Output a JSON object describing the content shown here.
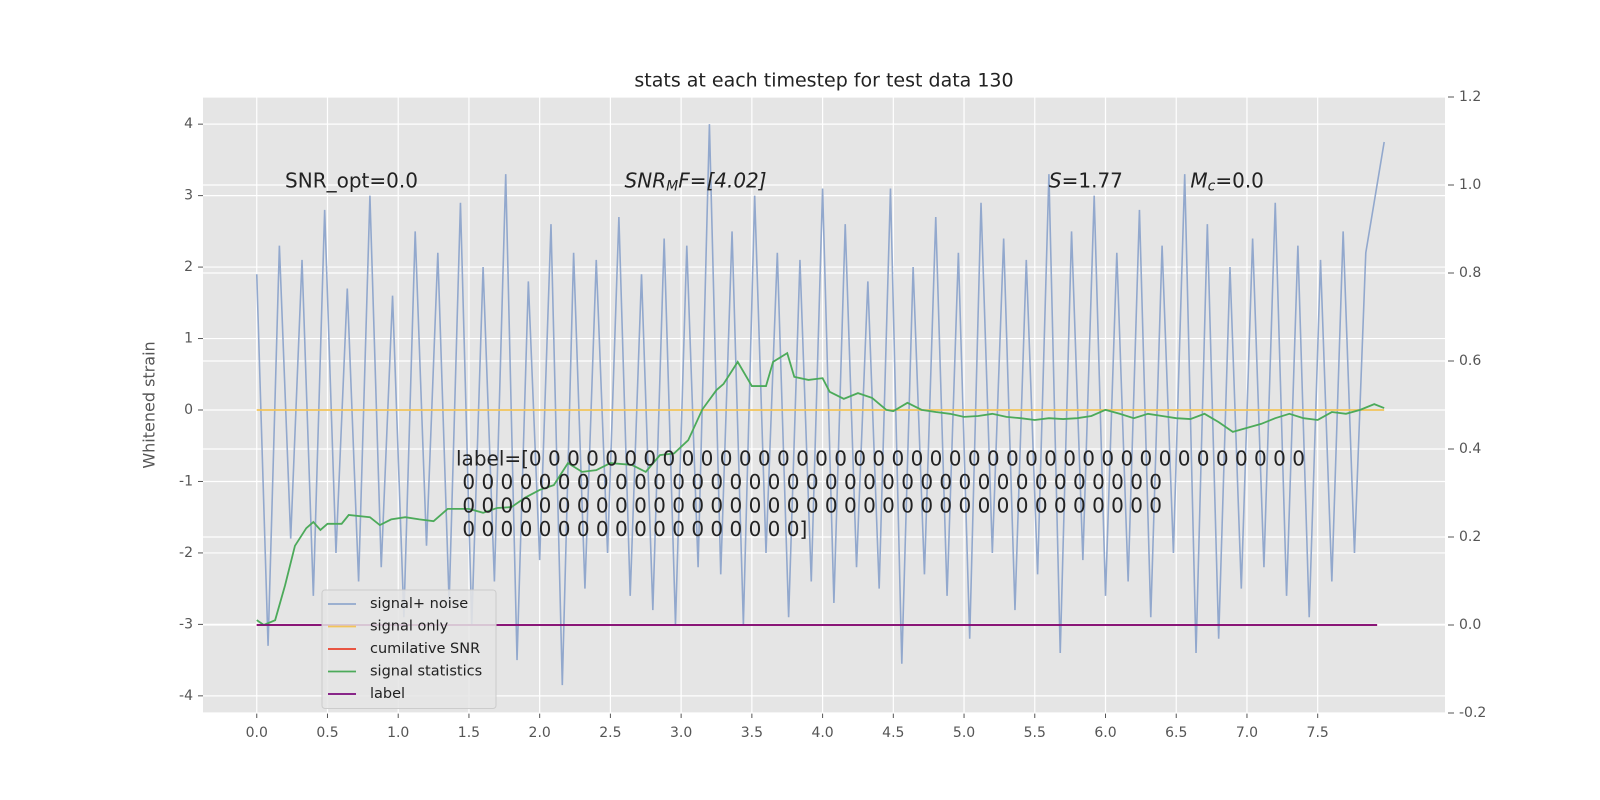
{
  "chart_data": {
    "type": "line",
    "title": "stats at each timestep for test data 130",
    "ylabel": "Whitened strain",
    "annotations": [
      {
        "parts": [
          "SNR_opt=0.0"
        ]
      },
      {
        "parts": [
          "SNR",
          "M",
          "F=[4.02]"
        ]
      },
      {
        "parts": [
          "S",
          "=1.77"
        ]
      },
      {
        "parts": [
          "M",
          "c",
          "=0.0"
        ]
      }
    ],
    "label_text": [
      "label=[0 0 0 0 0 0 0 0 0 0 0 0 0 0 0 0 0 0 0 0 0 0 0 0 0 0 0 0 0 0 0 0 0 0 0 0 0 0 0 0 0",
      " 0 0 0 0 0 0 0 0 0 0 0 0 0 0 0 0 0 0 0 0 0 0 0 0 0 0 0 0 0 0 0 0 0 0 0 0 0",
      " 0 0 0 0 0 0 0 0 0 0 0 0 0 0 0 0 0 0 0 0 0 0 0 0 0 0 0 0 0 0 0 0 0 0 0 0 0",
      " 0 0 0 0 0 0 0 0 0 0 0 0 0 0 0 0 0 0]"
    ],
    "xlim": [
      -0.38,
      8.4
    ],
    "xticks": [
      {
        "value": 0,
        "label": "0.0"
      },
      0.5,
      {
        "value": 1,
        "label": "1.0"
      },
      1.5,
      {
        "value": 2,
        "label": "2.0"
      },
      2.5,
      {
        "value": 3,
        "label": "3.0"
      },
      3.5,
      {
        "value": 4,
        "label": "4.0"
      },
      4.5,
      {
        "value": 5,
        "label": "5.0"
      },
      5.5,
      {
        "value": 6,
        "label": "6.0"
      },
      6.5,
      {
        "value": 7,
        "label": "7.0"
      },
      7.5
    ],
    "ylim": [
      -4.24,
      4.38
    ],
    "yticks": [
      -4,
      -3,
      -2,
      -1,
      0,
      1,
      2,
      3,
      4
    ],
    "y2lim": [
      -0.2,
      1.2
    ],
    "y2ticks": [
      -0.2,
      {
        "value": 0,
        "label": "0.0"
      },
      0.2,
      0.4,
      0.6,
      0.8,
      {
        "value": 1,
        "label": "1.0"
      },
      1.2
    ],
    "grid": true,
    "legend": "lower left",
    "series": [
      {
        "name": "signal+ noise",
        "color": "#92a8cd",
        "x": [
          0,
          0.08,
          0.16,
          0.24,
          0.32,
          0.4,
          0.48,
          0.56,
          0.64,
          0.72,
          0.8,
          0.88,
          0.96,
          1.04,
          1.12,
          1.2,
          1.28,
          1.36,
          1.44,
          1.52,
          1.6,
          1.68,
          1.76,
          1.84,
          1.92,
          2,
          2.08,
          2.16,
          2.24,
          2.32,
          2.4,
          2.48,
          2.56,
          2.64,
          2.72,
          2.8,
          2.88,
          2.96,
          3.04,
          3.12,
          3.2,
          3.28,
          3.36,
          3.44,
          3.52,
          3.6,
          3.68,
          3.76,
          3.84,
          3.92,
          4,
          4.08,
          4.16,
          4.24,
          4.32,
          4.4,
          4.48,
          4.56,
          4.64,
          4.72,
          4.8,
          4.88,
          4.96,
          5.04,
          5.12,
          5.2,
          5.28,
          5.36,
          5.44,
          5.52,
          5.6,
          5.68,
          5.76,
          5.84,
          5.92,
          6,
          6.08,
          6.16,
          6.24,
          6.32,
          6.4,
          6.48,
          6.56,
          6.64,
          6.72,
          6.8,
          6.88,
          6.96,
          7.04,
          7.12,
          7.2,
          7.28,
          7.36,
          7.44,
          7.52,
          7.6,
          7.68,
          7.76,
          7.84,
          7.97
        ],
        "values": [
          1.9,
          -3.3,
          2.3,
          -1.8,
          2.1,
          -2.6,
          2.8,
          -2.0,
          1.7,
          -2.4,
          3.0,
          -2.2,
          1.6,
          -2.9,
          2.5,
          -1.9,
          2.2,
          -2.7,
          2.9,
          -3.0,
          2.0,
          -2.4,
          3.3,
          -3.5,
          1.8,
          -2.1,
          2.6,
          -3.85,
          2.2,
          -2.5,
          2.1,
          -2.0,
          2.7,
          -2.6,
          1.9,
          -2.8,
          2.4,
          -3.0,
          2.3,
          -2.2,
          4.0,
          -2.3,
          2.5,
          -3.0,
          3.0,
          -2.0,
          2.2,
          -2.9,
          2.1,
          -2.4,
          3.1,
          -2.7,
          2.6,
          -2.2,
          1.8,
          -2.5,
          3.1,
          -3.55,
          2.0,
          -2.3,
          2.7,
          -2.6,
          2.2,
          -3.2,
          2.9,
          -2.0,
          2.4,
          -2.8,
          2.1,
          -2.3,
          3.3,
          -3.4,
          2.5,
          -2.1,
          3.0,
          -2.6,
          2.2,
          -2.4,
          2.8,
          -2.9,
          2.3,
          -2.0,
          3.3,
          -3.4,
          2.6,
          -3.2,
          2.0,
          -2.5,
          2.4,
          -2.2,
          2.9,
          -2.6,
          2.3,
          -2.9,
          2.1,
          -2.4,
          2.5,
          -2.0,
          2.2,
          3.75
        ]
      },
      {
        "name": "signal only",
        "color": "#f2c45a",
        "x": [
          0,
          7.97
        ],
        "values": [
          0,
          0
        ]
      },
      {
        "name": "cumilative SNR",
        "color": "#e8402a",
        "axis": "y2",
        "x": [
          0,
          7.92
        ],
        "values": [
          0,
          0
        ]
      },
      {
        "name": "signal statistics",
        "color": "#4caa5a",
        "axis": "y2",
        "x": [
          0,
          0.05,
          0.13,
          0.2,
          0.27,
          0.35,
          0.4,
          0.45,
          0.5,
          0.6,
          0.65,
          0.8,
          0.87,
          0.95,
          1.05,
          1.15,
          1.25,
          1.35,
          1.5,
          1.6,
          1.7,
          1.8,
          1.9,
          2,
          2.1,
          2.2,
          2.3,
          2.4,
          2.5,
          2.65,
          2.75,
          2.85,
          2.95,
          3.05,
          3.15,
          3.25,
          3.3,
          3.4,
          3.5,
          3.6,
          3.65,
          3.75,
          3.8,
          3.9,
          4,
          4.05,
          4.15,
          4.25,
          4.35,
          4.45,
          4.5,
          4.6,
          4.7,
          4.8,
          4.9,
          5,
          5.1,
          5.2,
          5.3,
          5.4,
          5.5,
          5.6,
          5.7,
          5.8,
          5.9,
          6,
          6.1,
          6.2,
          6.3,
          6.4,
          6.5,
          6.6,
          6.7,
          6.8,
          6.9,
          7,
          7.1,
          7.2,
          7.3,
          7.4,
          7.5,
          7.6,
          7.7,
          7.8,
          7.9,
          7.97
        ],
        "values": [
          0.011,
          0,
          0.011,
          0.09,
          0.18,
          0.22,
          0.234,
          0.216,
          0.23,
          0.23,
          0.25,
          0.245,
          0.227,
          0.24,
          0.245,
          0.24,
          0.236,
          0.264,
          0.264,
          0.255,
          0.266,
          0.268,
          0.29,
          0.307,
          0.318,
          0.368,
          0.348,
          0.352,
          0.368,
          0.364,
          0.348,
          0.386,
          0.39,
          0.42,
          0.49,
          0.534,
          0.548,
          0.598,
          0.543,
          0.543,
          0.598,
          0.618,
          0.564,
          0.557,
          0.561,
          0.53,
          0.514,
          0.527,
          0.516,
          0.489,
          0.486,
          0.505,
          0.489,
          0.484,
          0.48,
          0.473,
          0.475,
          0.48,
          0.473,
          0.47,
          0.466,
          0.47,
          0.468,
          0.47,
          0.475,
          0.489,
          0.48,
          0.47,
          0.48,
          0.475,
          0.47,
          0.468,
          0.48,
          0.461,
          0.439,
          0.448,
          0.457,
          0.47,
          0.48,
          0.47,
          0.466,
          0.484,
          0.48,
          0.489,
          0.502,
          0.493
        ]
      },
      {
        "name": "label",
        "color": "#7b0a7b",
        "axis": "y2",
        "x": [
          0,
          7.92
        ],
        "values": [
          0,
          0
        ]
      }
    ]
  }
}
